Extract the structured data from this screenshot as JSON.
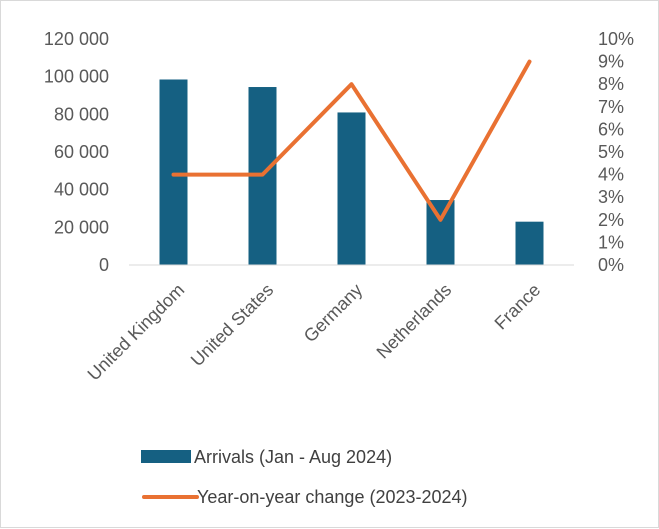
{
  "chart_data": {
    "type": "bar",
    "categories": [
      "United Kingdom",
      "United States",
      "Germany",
      "Netherlands",
      "France"
    ],
    "series": [
      {
        "name": "Arrivals (Jan - Aug 2024)",
        "type": "bar",
        "axis": "left",
        "color": "#156082",
        "values": [
          98500,
          94500,
          81000,
          34500,
          23000
        ]
      },
      {
        "name": "Year-on-year change (2023-2024)",
        "type": "line",
        "axis": "right",
        "color": "#e97132",
        "values": [
          0.04,
          0.04,
          0.08,
          0.02,
          0.09
        ]
      }
    ],
    "y_left": {
      "min": 0,
      "max": 120000,
      "step": 20000,
      "tick_labels": [
        "0",
        "20 000",
        "40 000",
        "60 000",
        "80 000",
        "100 000",
        "120 000"
      ]
    },
    "y_right": {
      "min": 0,
      "max": 0.1,
      "step": 0.01,
      "tick_labels": [
        "0%",
        "1%",
        "2%",
        "3%",
        "4%",
        "5%",
        "6%",
        "7%",
        "8%",
        "9%",
        "10%"
      ]
    },
    "grid": false,
    "legend_position": "bottom"
  }
}
